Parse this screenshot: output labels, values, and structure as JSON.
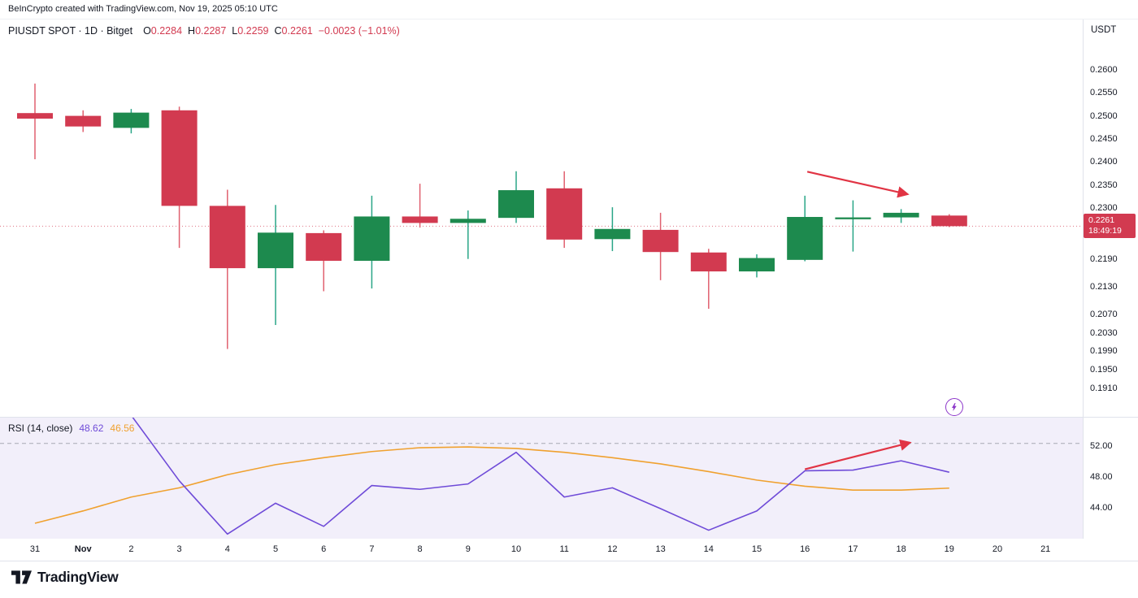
{
  "attribution": "BeInCrypto created with TradingView.com, Nov 19, 2025 05:10 UTC",
  "header": {
    "symbol": "PIUSDT SPOT · 1D · Bitget",
    "ohlc": [
      {
        "label": "O",
        "value": "0.2284"
      },
      {
        "label": "H",
        "value": "0.2287"
      },
      {
        "label": "L",
        "value": "0.2259"
      },
      {
        "label": "C",
        "value": "0.2261"
      }
    ],
    "change": "−0.0023 (−1.01%)"
  },
  "price_axis": {
    "currency": "USDT",
    "last_price": "0.2261",
    "countdown": "18:49:19"
  },
  "rsi": {
    "title": "RSI (14, close)",
    "value": "48.62",
    "ma_value": "46.56"
  },
  "footer": {
    "logo_text": "TradingView"
  },
  "colors": {
    "up": "#1d8a4e",
    "up_wick": "#2aa587",
    "down": "#d23a50",
    "down_wick": "#e0606f",
    "last_price_badge": "#d23a50",
    "rsi_line": "#6f4bd8",
    "rsi_ma": "#f0a12f",
    "arrow": "#e13444",
    "dashed_level": "#a6a9b3",
    "rsi_panel_bg": "#f2effa",
    "flash_icon": "#8c36c9"
  },
  "chart_data": [
    {
      "type": "candlestick",
      "title": "PIUSDT SPOT · 1D · Bitget",
      "x_labels": [
        "31",
        "Nov",
        "2",
        "3",
        "4",
        "5",
        "6",
        "7",
        "8",
        "9",
        "10",
        "11",
        "12",
        "13",
        "14",
        "15",
        "16",
        "17",
        "18",
        "19",
        "20",
        "21"
      ],
      "bold_x_label": "Nov",
      "y_ticks": [
        "0.2600",
        "0.2550",
        "0.2500",
        "0.2450",
        "0.2400",
        "0.2350",
        "0.2300",
        "0.2190",
        "0.2130",
        "0.2070",
        "0.2030",
        "0.1990",
        "0.1950",
        "0.1910"
      ],
      "ylim": [
        0.1848,
        0.2707
      ],
      "last_price": 0.2261,
      "candles": [
        {
          "t": "31",
          "o": 0.2506,
          "h": 0.257,
          "l": 0.2406,
          "c": 0.2494
        },
        {
          "t": "Nov",
          "o": 0.25,
          "h": 0.2512,
          "l": 0.2465,
          "c": 0.2477
        },
        {
          "t": "2",
          "o": 0.2474,
          "h": 0.2515,
          "l": 0.2462,
          "c": 0.2507
        },
        {
          "t": "3",
          "o": 0.2512,
          "h": 0.252,
          "l": 0.2214,
          "c": 0.2305
        },
        {
          "t": "4",
          "o": 0.2305,
          "h": 0.234,
          "l": 0.1995,
          "c": 0.217
        },
        {
          "t": "5",
          "o": 0.217,
          "h": 0.2307,
          "l": 0.2047,
          "c": 0.2247
        },
        {
          "t": "6",
          "o": 0.2246,
          "h": 0.2252,
          "l": 0.212,
          "c": 0.2186
        },
        {
          "t": "7",
          "o": 0.2186,
          "h": 0.2327,
          "l": 0.2126,
          "c": 0.2282
        },
        {
          "t": "8",
          "o": 0.2282,
          "h": 0.2353,
          "l": 0.2258,
          "c": 0.2268
        },
        {
          "t": "9",
          "o": 0.2268,
          "h": 0.2295,
          "l": 0.219,
          "c": 0.2277
        },
        {
          "t": "10",
          "o": 0.2279,
          "h": 0.238,
          "l": 0.2268,
          "c": 0.2339
        },
        {
          "t": "11",
          "o": 0.2343,
          "h": 0.238,
          "l": 0.2214,
          "c": 0.2232
        },
        {
          "t": "12",
          "o": 0.2233,
          "h": 0.2302,
          "l": 0.2207,
          "c": 0.2255
        },
        {
          "t": "13",
          "o": 0.2253,
          "h": 0.229,
          "l": 0.2144,
          "c": 0.2205
        },
        {
          "t": "14",
          "o": 0.2204,
          "h": 0.2212,
          "l": 0.2082,
          "c": 0.2163
        },
        {
          "t": "15",
          "o": 0.2163,
          "h": 0.22,
          "l": 0.215,
          "c": 0.2192
        },
        {
          "t": "16",
          "o": 0.2188,
          "h": 0.2327,
          "l": 0.2185,
          "c": 0.2281
        },
        {
          "t": "17",
          "o": 0.2276,
          "h": 0.2317,
          "l": 0.2206,
          "c": 0.228
        },
        {
          "t": "18",
          "o": 0.228,
          "h": 0.2298,
          "l": 0.2268,
          "c": 0.229
        },
        {
          "t": "19",
          "o": 0.2284,
          "h": 0.2287,
          "l": 0.2259,
          "c": 0.2261
        }
      ],
      "arrow": {
        "from_i": 16.05,
        "from_p": 0.2379,
        "to_i": 18.1,
        "to_p": 0.2331
      }
    },
    {
      "type": "line",
      "title": "RSI (14, close)",
      "series": [
        {
          "name": "RSI",
          "color": "#6f4bd8",
          "values": [
            68,
            61,
            56,
            47.5,
            40.6,
            44.6,
            41.6,
            46.9,
            46.4,
            47.1,
            51.2,
            45.4,
            46.6,
            43.9,
            41.1,
            43.6,
            48.8,
            48.9,
            50.1,
            48.62
          ]
        },
        {
          "name": "RSI-MA",
          "color": "#f0a12f",
          "values": [
            42.0,
            43.6,
            45.4,
            46.6,
            48.3,
            49.6,
            50.5,
            51.3,
            51.8,
            51.9,
            51.7,
            51.2,
            50.5,
            49.7,
            48.7,
            47.6,
            46.8,
            46.3,
            46.3,
            46.56
          ]
        }
      ],
      "y_ticks": [
        "52.00",
        "48.00",
        "44.00"
      ],
      "ylim": [
        40.0,
        55.7
      ],
      "dashed_level": 52.35,
      "arrow": {
        "from_i": 16.0,
        "from_v": 49.0,
        "to_i": 18.15,
        "to_v": 52.4
      }
    }
  ]
}
